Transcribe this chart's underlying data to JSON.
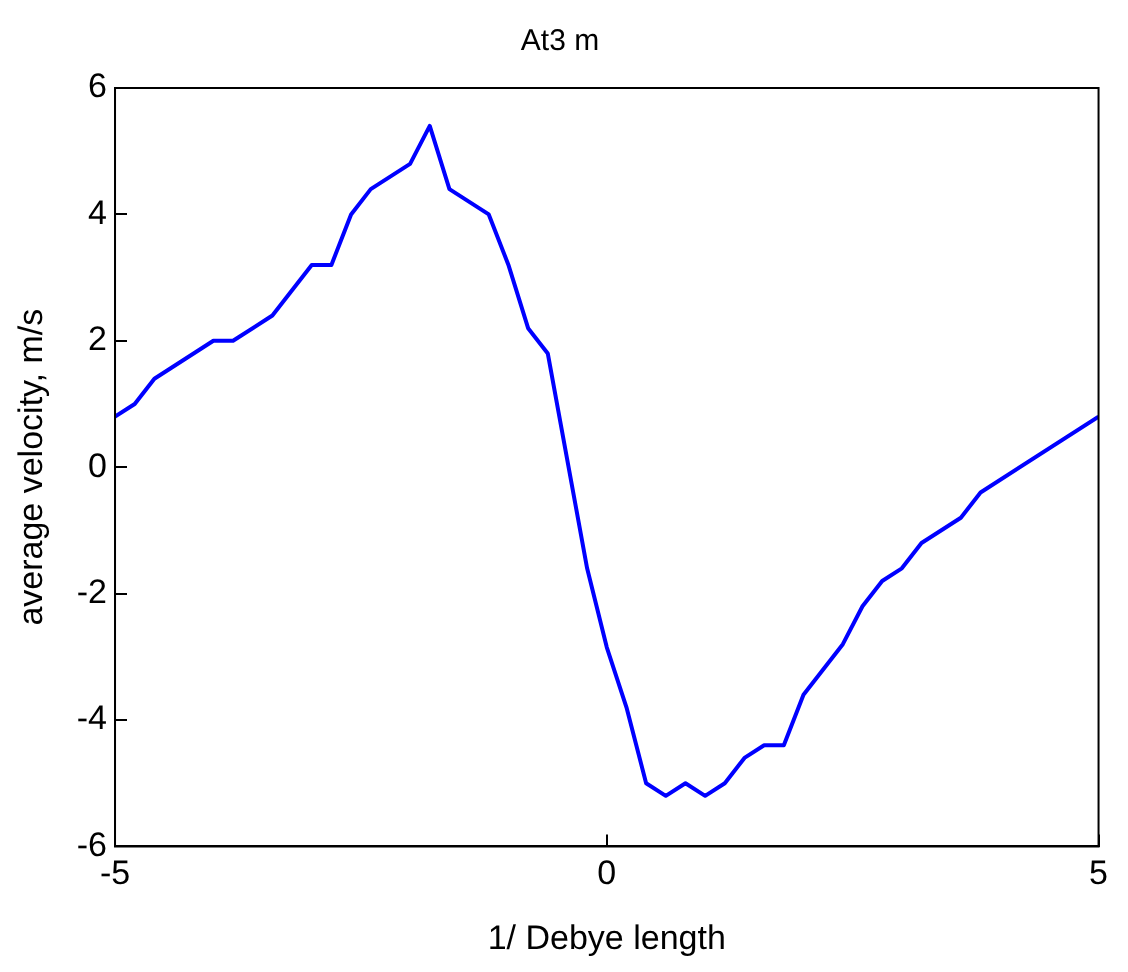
{
  "chart_data": {
    "type": "line",
    "title": "At3 m",
    "xlabel": "1/ Debye length",
    "ylabel": "average velocity, m/s",
    "x": [
      -5,
      -4.8,
      -4.6,
      -4.0,
      -3.8,
      -3.4,
      -3.0,
      -2.8,
      -2.6,
      -2.4,
      -2.0,
      -1.8,
      -1.6,
      -1.2,
      -1.0,
      -0.8,
      -0.6,
      -0.2,
      0.0,
      0.2,
      0.4,
      0.6,
      0.8,
      1.0,
      1.2,
      1.4,
      1.6,
      1.8,
      2.0,
      2.4,
      2.6,
      2.8,
      3.0,
      3.2,
      3.6,
      3.8,
      5.0
    ],
    "series": [
      {
        "color": "#0000ff",
        "values": [
          0.8,
          1.0,
          1.4,
          2.0,
          2.0,
          2.4,
          3.2,
          3.2,
          4.0,
          4.4,
          4.8,
          5.4,
          4.4,
          4.0,
          3.2,
          2.2,
          1.8,
          -1.6,
          -2.85,
          -3.8,
          -5.0,
          -5.2,
          -5.0,
          -5.2,
          -5.0,
          -4.6,
          -4.4,
          -4.4,
          -3.6,
          -2.8,
          -2.2,
          -1.8,
          -1.6,
          -1.2,
          -0.8,
          -0.4,
          0.8
        ]
      }
    ],
    "xlim": [
      -5,
      5
    ],
    "xticks": [
      -5,
      0,
      5
    ],
    "ylim": [
      -6,
      6
    ],
    "yticks": [
      -6,
      -4,
      -2,
      0,
      2,
      4,
      6
    ],
    "grid": false,
    "legend": false,
    "marker": "none",
    "line_style": "solid"
  }
}
